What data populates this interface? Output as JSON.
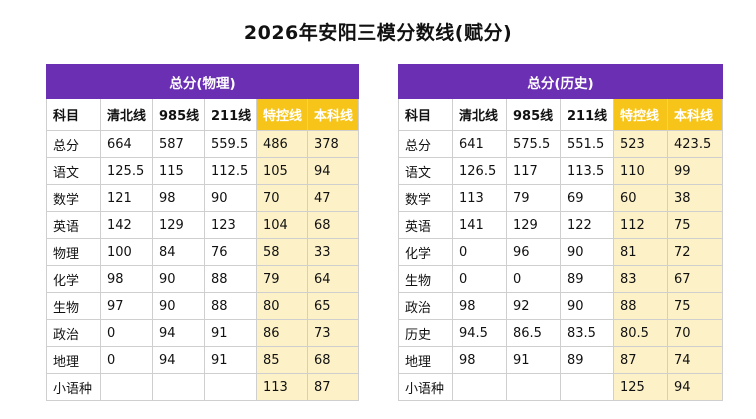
{
  "title": "2026年安阳三模分数线(赋分)",
  "left": {
    "header": "总分(物理)",
    "columns": [
      "科目",
      "清北线",
      "985线",
      "211线",
      "特控线",
      "本科线"
    ],
    "rows": [
      [
        "总分",
        "664",
        "587",
        "559.5",
        "486",
        "378"
      ],
      [
        "语文",
        "125.5",
        "115",
        "112.5",
        "105",
        "94"
      ],
      [
        "数学",
        "121",
        "98",
        "90",
        "70",
        "47"
      ],
      [
        "英语",
        "142",
        "129",
        "123",
        "104",
        "68"
      ],
      [
        "物理",
        "100",
        "84",
        "76",
        "58",
        "33"
      ],
      [
        "化学",
        "98",
        "90",
        "88",
        "79",
        "64"
      ],
      [
        "生物",
        "97",
        "90",
        "88",
        "80",
        "65"
      ],
      [
        "政治",
        "0",
        "94",
        "91",
        "86",
        "73"
      ],
      [
        "地理",
        "0",
        "94",
        "91",
        "85",
        "68"
      ],
      [
        "小语种",
        "",
        "",
        "",
        "113",
        "87"
      ]
    ]
  },
  "right": {
    "header": "总分(历史)",
    "columns": [
      "科目",
      "清北线",
      "985线",
      "211线",
      "特控线",
      "本科线"
    ],
    "rows": [
      [
        "总分",
        "641",
        "575.5",
        "551.5",
        "523",
        "423.5"
      ],
      [
        "语文",
        "126.5",
        "117",
        "113.5",
        "110",
        "99"
      ],
      [
        "数学",
        "113",
        "79",
        "69",
        "60",
        "38"
      ],
      [
        "英语",
        "141",
        "129",
        "122",
        "112",
        "75"
      ],
      [
        "化学",
        "0",
        "96",
        "90",
        "81",
        "72"
      ],
      [
        "生物",
        "0",
        "0",
        "89",
        "83",
        "67"
      ],
      [
        "政治",
        "98",
        "92",
        "90",
        "88",
        "75"
      ],
      [
        "历史",
        "94.5",
        "86.5",
        "83.5",
        "80.5",
        "70"
      ],
      [
        "地理",
        "98",
        "91",
        "89",
        "87",
        "74"
      ],
      [
        "小语种",
        "",
        "",
        "",
        "125",
        "94"
      ]
    ]
  }
}
